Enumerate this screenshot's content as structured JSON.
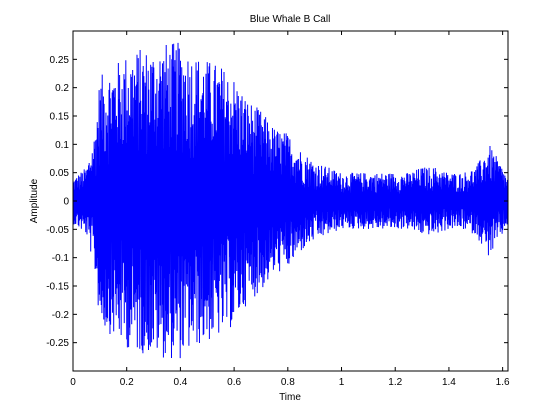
{
  "chart_data": {
    "type": "line",
    "title": "Blue Whale B Call",
    "xlabel": "Time",
    "ylabel": "Amplitude",
    "xlim": [
      0,
      1.62
    ],
    "ylim": [
      -0.3,
      0.3
    ],
    "grid": false,
    "legend": "none",
    "x_ticks": [
      0,
      0.2,
      0.4,
      0.6,
      0.8,
      1,
      1.2,
      1.4,
      1.6
    ],
    "x_tick_labels": [
      "0",
      "0.2",
      "0.4",
      "0.6",
      "0.8",
      "1",
      "1.2",
      "1.4",
      "1.6"
    ],
    "y_ticks": [
      -0.25,
      -0.2,
      -0.15,
      -0.1,
      -0.05,
      0,
      0.05,
      0.1,
      0.15,
      0.2,
      0.25
    ],
    "y_tick_labels": [
      "-0.25",
      "-0.2",
      "-0.15",
      "-0.1",
      "-0.05",
      "0",
      "0.05",
      "0.1",
      "0.15",
      "0.2",
      "0.25"
    ],
    "series": [
      {
        "color": "#0000ff",
        "envelope": {
          "t": [
            0,
            0.05,
            0.08,
            0.1,
            0.15,
            0.2,
            0.25,
            0.3,
            0.35,
            0.4,
            0.45,
            0.5,
            0.55,
            0.6,
            0.65,
            0.7,
            0.75,
            0.8,
            0.85,
            0.9,
            0.95,
            1.0,
            1.05,
            1.1,
            1.15,
            1.2,
            1.25,
            1.3,
            1.35,
            1.4,
            1.45,
            1.5,
            1.55,
            1.6,
            1.62
          ],
          "amp": [
            0.04,
            0.06,
            0.12,
            0.22,
            0.24,
            0.26,
            0.27,
            0.27,
            0.28,
            0.28,
            0.26,
            0.25,
            0.24,
            0.22,
            0.18,
            0.16,
            0.13,
            0.12,
            0.09,
            0.07,
            0.06,
            0.05,
            0.05,
            0.05,
            0.05,
            0.05,
            0.05,
            0.06,
            0.06,
            0.05,
            0.05,
            0.06,
            0.1,
            0.06,
            0.04
          ]
        },
        "sample_count": 1400
      }
    ]
  }
}
